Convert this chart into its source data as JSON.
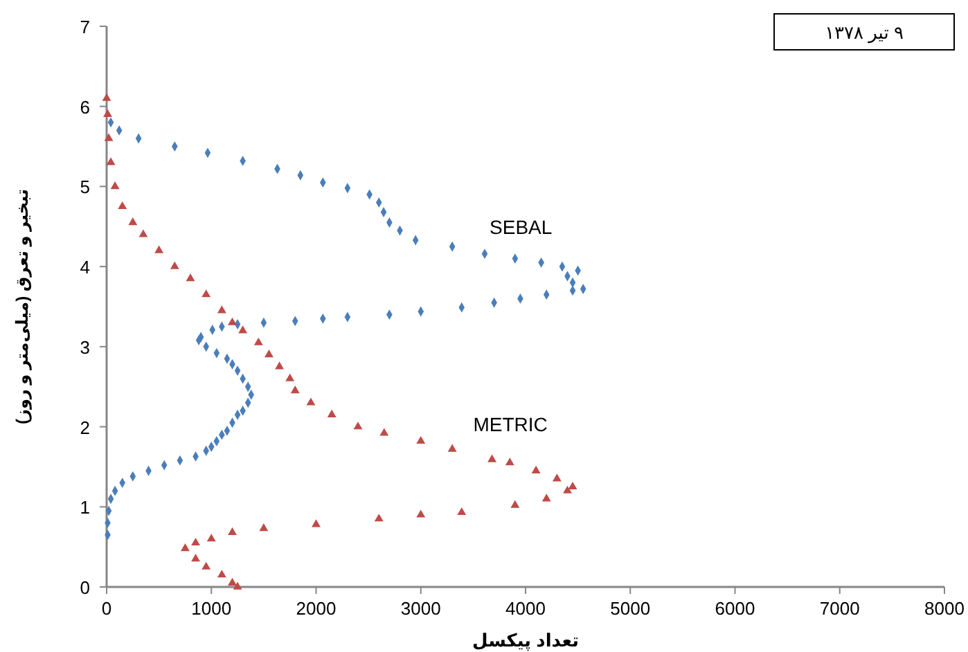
{
  "chart_data": {
    "type": "scatter",
    "xlabel": "تعداد پیکسل",
    "ylabel": "تبخیر و تعرق (میلی‌متر و روز)",
    "annotations": [
      "۹ تیر ۱۳۷۸"
    ],
    "xlim": [
      0,
      8000
    ],
    "xticks": [
      0,
      1000,
      2000,
      3000,
      4000,
      5000,
      6000,
      7000,
      8000
    ],
    "ylim": [
      0,
      7
    ],
    "yticks": [
      0,
      1,
      2,
      3,
      4,
      5,
      6,
      7
    ],
    "grid": false,
    "series": [
      {
        "name": "SEBAL",
        "color": "#4a7ebb",
        "marker": "diamond",
        "x": [
          10,
          10,
          20,
          40,
          80,
          150,
          250,
          400,
          550,
          700,
          850,
          950,
          1000,
          1050,
          1100,
          1150,
          1200,
          1250,
          1300,
          1350,
          1380,
          1350,
          1300,
          1250,
          1200,
          1150,
          1050,
          950,
          880,
          900,
          1010,
          1100,
          1250,
          1500,
          1800,
          2065,
          2300,
          2700,
          3000,
          3390,
          3700,
          3950,
          4200,
          4450,
          4550,
          4450,
          4400,
          4500,
          4350,
          4150,
          3900,
          3610,
          3300,
          2950,
          2800,
          2700,
          2645,
          2600,
          2510,
          2300,
          2065,
          1850,
          1630,
          1300,
          965,
          650,
          305,
          120,
          40
        ],
        "values": [
          0.65,
          0.8,
          0.95,
          1.1,
          1.2,
          1.3,
          1.38,
          1.45,
          1.52,
          1.58,
          1.63,
          1.7,
          1.75,
          1.82,
          1.9,
          1.95,
          2.05,
          2.15,
          2.2,
          2.3,
          2.4,
          2.5,
          2.6,
          2.7,
          2.78,
          2.85,
          2.92,
          3.0,
          3.08,
          3.12,
          3.21,
          3.25,
          3.28,
          3.3,
          3.32,
          3.35,
          3.37,
          3.4,
          3.44,
          3.49,
          3.55,
          3.6,
          3.65,
          3.7,
          3.72,
          3.8,
          3.88,
          3.95,
          4.0,
          4.05,
          4.1,
          4.16,
          4.25,
          4.33,
          4.45,
          4.55,
          4.68,
          4.8,
          4.9,
          4.98,
          5.05,
          5.14,
          5.22,
          5.32,
          5.42,
          5.5,
          5.6,
          5.7,
          5.8
        ]
      },
      {
        "name": "METRIC",
        "color": "#be4b48",
        "marker": "triangle",
        "x": [
          0,
          10,
          20,
          40,
          80,
          150,
          250,
          350,
          500,
          650,
          800,
          950,
          1100,
          1200,
          1300,
          1450,
          1550,
          1650,
          1750,
          1800,
          1950,
          2150,
          2400,
          2650,
          3000,
          3300,
          3680,
          3850,
          4100,
          4300,
          4450,
          4400,
          4200,
          3900,
          3390,
          3000,
          2600,
          2000,
          1500,
          1200,
          1000,
          850,
          750,
          850,
          950,
          1100,
          1200,
          1250
        ],
        "values": [
          6.1,
          5.9,
          5.6,
          5.3,
          5.0,
          4.75,
          4.55,
          4.4,
          4.2,
          4.0,
          3.85,
          3.65,
          3.45,
          3.3,
          3.2,
          3.05,
          2.9,
          2.75,
          2.6,
          2.45,
          2.3,
          2.15,
          2.0,
          1.92,
          1.82,
          1.72,
          1.59,
          1.55,
          1.45,
          1.35,
          1.25,
          1.2,
          1.1,
          1.02,
          0.93,
          0.9,
          0.85,
          0.78,
          0.73,
          0.68,
          0.6,
          0.55,
          0.48,
          0.35,
          0.25,
          0.15,
          0.05,
          0.0
        ]
      }
    ]
  }
}
